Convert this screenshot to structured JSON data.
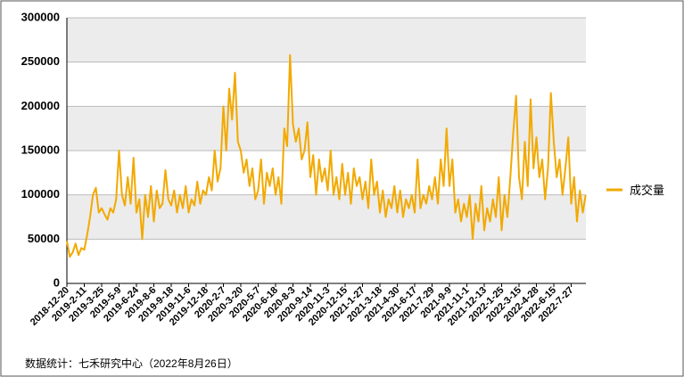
{
  "chart_data": {
    "type": "line",
    "categories": [
      "2018-12-20",
      null,
      null,
      null,
      null,
      null,
      "2019-2-11",
      null,
      null,
      null,
      null,
      null,
      "2019-3-25",
      null,
      null,
      null,
      null,
      null,
      "2019-5-9",
      null,
      null,
      null,
      null,
      null,
      "2019-6-24",
      null,
      null,
      null,
      null,
      null,
      "2019-8-6",
      null,
      null,
      null,
      null,
      null,
      "2019-9-18",
      null,
      null,
      null,
      null,
      null,
      "2019-11-6",
      null,
      null,
      null,
      null,
      null,
      "2019-12-18",
      null,
      null,
      null,
      null,
      null,
      "2020-2-7",
      null,
      null,
      null,
      null,
      null,
      "2020-3-20",
      null,
      null,
      null,
      null,
      null,
      "2020-5-7",
      null,
      null,
      null,
      null,
      null,
      "2020-6-18",
      null,
      null,
      null,
      null,
      null,
      "2020-8-3",
      null,
      null,
      null,
      null,
      null,
      "2020-9-14",
      null,
      null,
      null,
      null,
      null,
      "2020-11-3",
      null,
      null,
      null,
      null,
      null,
      "2020-12-15",
      null,
      null,
      null,
      null,
      null,
      "2021-1-27",
      null,
      null,
      null,
      null,
      null,
      "2021-3-18",
      null,
      null,
      null,
      null,
      null,
      "2021-4-30",
      null,
      null,
      null,
      null,
      null,
      "2021-6-17",
      null,
      null,
      null,
      null,
      null,
      "2021-7-29",
      null,
      null,
      null,
      null,
      null,
      "2021-9-9",
      null,
      null,
      null,
      null,
      null,
      "2021-11-1",
      null,
      null,
      null,
      null,
      null,
      "2021-12-13",
      null,
      null,
      null,
      null,
      null,
      "2022-1-25",
      null,
      null,
      null,
      null,
      null,
      "2022-3-15",
      null,
      null,
      null,
      null,
      null,
      "2022-4-28",
      null,
      null,
      null,
      null,
      null,
      "2022-6-15",
      null,
      null,
      null,
      null,
      null,
      "2022-7-27",
      null,
      null,
      null,
      null,
      null
    ],
    "series": [
      {
        "name": "成交量",
        "color": "#f2a900",
        "values": [
          48000,
          30000,
          35000,
          45000,
          32000,
          40000,
          38000,
          55000,
          75000,
          100000,
          108000,
          80000,
          85000,
          78000,
          72000,
          85000,
          80000,
          95000,
          150000,
          100000,
          88000,
          120000,
          90000,
          142000,
          80000,
          95000,
          50000,
          100000,
          75000,
          110000,
          70000,
          105000,
          85000,
          90000,
          128000,
          95000,
          88000,
          105000,
          80000,
          100000,
          85000,
          110000,
          80000,
          95000,
          88000,
          115000,
          90000,
          105000,
          100000,
          120000,
          105000,
          150000,
          115000,
          130000,
          200000,
          150000,
          220000,
          185000,
          238000,
          160000,
          150000,
          125000,
          140000,
          110000,
          130000,
          95000,
          105000,
          140000,
          90000,
          125000,
          110000,
          130000,
          100000,
          120000,
          90000,
          175000,
          155000,
          258000,
          180000,
          160000,
          175000,
          140000,
          150000,
          182000,
          120000,
          145000,
          100000,
          140000,
          115000,
          130000,
          105000,
          150000,
          100000,
          120000,
          95000,
          135000,
          100000,
          125000,
          90000,
          130000,
          110000,
          120000,
          95000,
          115000,
          85000,
          140000,
          100000,
          115000,
          80000,
          105000,
          75000,
          95000,
          85000,
          110000,
          80000,
          105000,
          75000,
          95000,
          85000,
          100000,
          80000,
          140000,
          85000,
          100000,
          90000,
          110000,
          95000,
          120000,
          90000,
          140000,
          110000,
          175000,
          110000,
          140000,
          80000,
          95000,
          70000,
          90000,
          75000,
          100000,
          50000,
          90000,
          70000,
          110000,
          60000,
          85000,
          70000,
          95000,
          75000,
          120000,
          60000,
          100000,
          75000,
          120000,
          170000,
          212000,
          120000,
          95000,
          160000,
          110000,
          208000,
          130000,
          165000,
          120000,
          140000,
          95000,
          130000,
          215000,
          160000,
          120000,
          140000,
          100000,
          130000,
          165000,
          90000,
          120000,
          70000,
          105000,
          80000,
          100000
        ]
      }
    ],
    "ylim": [
      0,
      300000
    ],
    "yticks": [
      0,
      50000,
      100000,
      150000,
      200000,
      250000,
      300000
    ],
    "grid": true,
    "legend": "right",
    "source": "数据统计：七禾研究中心（2022年8月26日）"
  }
}
